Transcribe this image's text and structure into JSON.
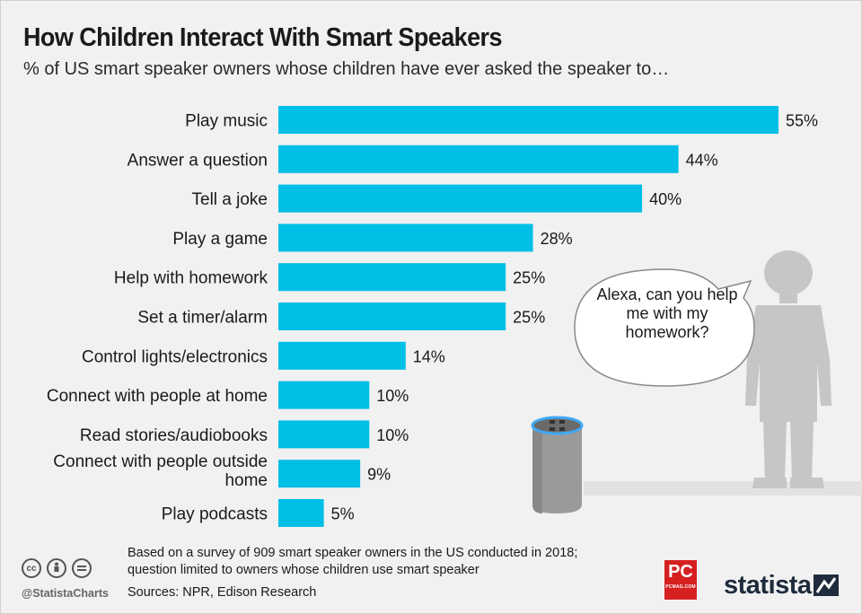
{
  "header": {
    "title": "How Children Interact With Smart Speakers",
    "subtitle": "% of US smart speaker owners whose children have ever asked the speaker to…"
  },
  "chart_data": {
    "type": "bar",
    "orientation": "horizontal",
    "title": "How Children Interact With Smart Speakers",
    "subtitle": "% of US smart speaker owners whose children have ever asked the speaker to…",
    "categories": [
      "Play music",
      "Answer a question",
      "Tell a joke",
      "Play a game",
      "Help with homework",
      "Set a timer/alarm",
      "Control lights/electronics",
      "Connect with people at home",
      "Read stories/audiobooks",
      "Connect with people outside home",
      "Play podcasts"
    ],
    "values": [
      55,
      44,
      40,
      28,
      25,
      25,
      14,
      10,
      10,
      9,
      5
    ],
    "value_labels": [
      "55%",
      "44%",
      "40%",
      "28%",
      "25%",
      "25%",
      "14%",
      "10%",
      "10%",
      "9%",
      "5%"
    ],
    "xlim": [
      0,
      55
    ],
    "grid": false,
    "bar_color": "#00bfe6"
  },
  "illustration": {
    "speech_bubble": "Alexa, can you help me with my homework?",
    "icons": [
      "child-silhouette-icon",
      "smart-speaker-icon"
    ]
  },
  "footer": {
    "note": "Based on a survey of 909 smart speaker owners in the US conducted in 2018; question limited to owners whose children use smart speaker",
    "sources": "Sources: NPR, Edison Research",
    "handle": "@StatistaCharts",
    "pc_logo": "PC",
    "pc_logo_sub": "PCMAG.COM",
    "brand": "statista"
  },
  "colors": {
    "bar": "#00bfe6",
    "background": "#f1f1f1",
    "silhouette": "#c6c6c6",
    "brand": "#1e2b3c",
    "pc_red": "#d62020"
  }
}
